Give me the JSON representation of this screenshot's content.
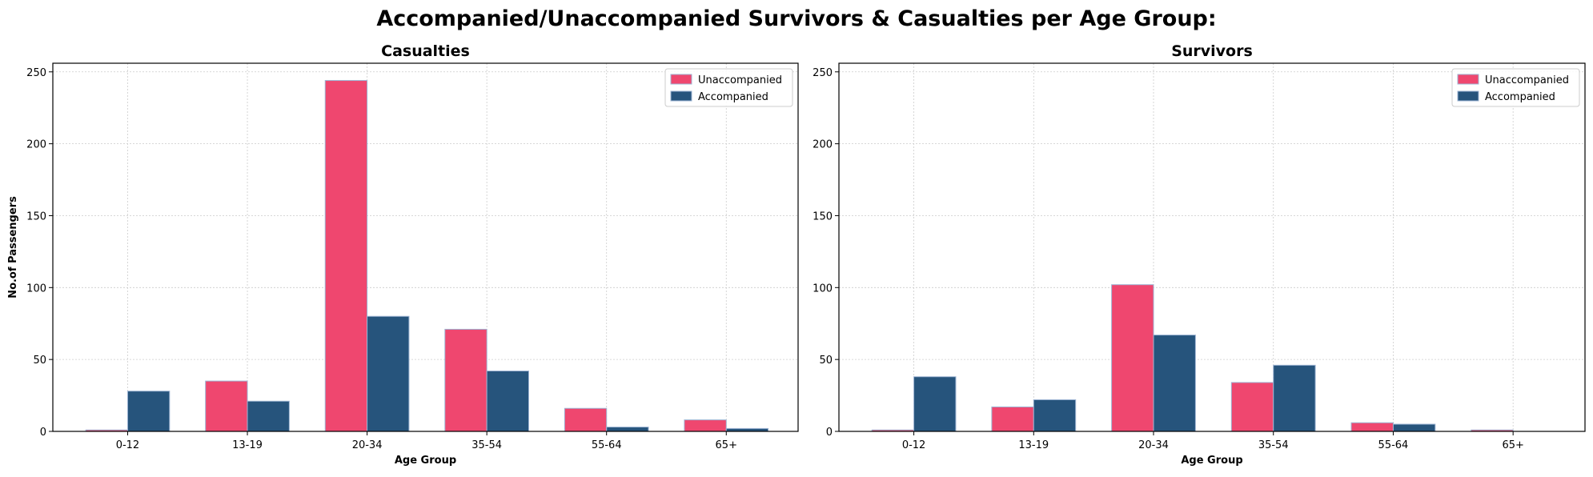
{
  "title": "Accompanied/Unaccompanied Survivors & Casualties per Age Group:",
  "colors": {
    "unaccompanied": "#EF476F",
    "accompanied": "#26547C",
    "edge": "#9DB4D3"
  },
  "chart_data": [
    {
      "type": "bar",
      "title": "Casualties",
      "xlabel": "Age Group",
      "ylabel": "No.of Passengers",
      "categories": [
        "0-12",
        "13-19",
        "20-34",
        "35-54",
        "55-64",
        "65+"
      ],
      "ylim": [
        0,
        256
      ],
      "yticks": [
        0,
        50,
        100,
        150,
        200,
        250
      ],
      "grid": true,
      "legend": "top-right",
      "series": [
        {
          "name": "Unaccompanied",
          "values": [
            1,
            35,
            244,
            71,
            16,
            8
          ]
        },
        {
          "name": "Accompanied",
          "values": [
            28,
            21,
            80,
            42,
            3,
            2
          ]
        }
      ]
    },
    {
      "type": "bar",
      "title": "Survivors",
      "xlabel": "Age Group",
      "ylabel": "",
      "categories": [
        "0-12",
        "13-19",
        "20-34",
        "35-54",
        "55-64",
        "65+"
      ],
      "ylim": [
        0,
        256
      ],
      "yticks": [
        0,
        50,
        100,
        150,
        200,
        250
      ],
      "grid": true,
      "legend": "top-right",
      "series": [
        {
          "name": "Unaccompanied",
          "values": [
            1,
            17,
            102,
            34,
            6,
            1
          ]
        },
        {
          "name": "Accompanied",
          "values": [
            38,
            22,
            67,
            46,
            5,
            0
          ]
        }
      ]
    }
  ]
}
